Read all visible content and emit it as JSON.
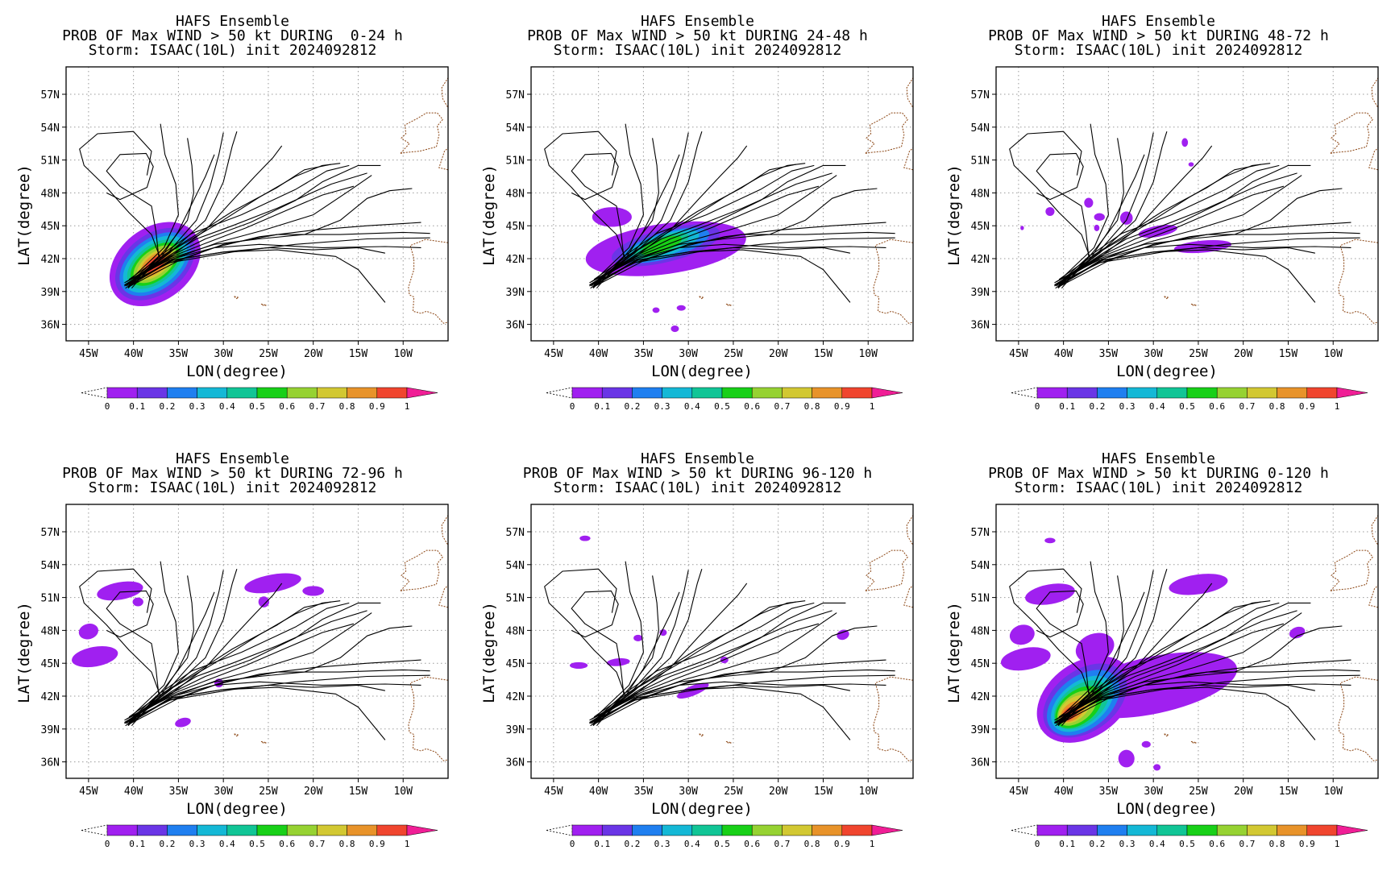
{
  "panels": [
    {
      "title1": "HAFS Ensemble",
      "title2": "PROB OF Max WIND > 50 kt DURING  0-24 h",
      "title3": "Storm: ISAAC(10L) init 2024092812"
    },
    {
      "title1": "HAFS Ensemble",
      "title2": "PROB OF Max WIND > 50 kt DURING 24-48 h",
      "title3": "Storm: ISAAC(10L) init 2024092812"
    },
    {
      "title1": "HAFS Ensemble",
      "title2": "PROB OF Max WIND > 50 kt DURING 48-72 h",
      "title3": "Storm: ISAAC(10L) init 2024092812"
    },
    {
      "title1": "HAFS Ensemble",
      "title2": "PROB OF Max WIND > 50 kt DURING 72-96 h",
      "title3": "Storm: ISAAC(10L) init 2024092812"
    },
    {
      "title1": "HAFS Ensemble",
      "title2": "PROB OF Max WIND > 50 kt DURING 96-120 h",
      "title3": "Storm: ISAAC(10L) init 2024092812"
    },
    {
      "title1": "HAFS Ensemble",
      "title2": "PROB OF Max WIND > 50 kt DURING 0-120 h",
      "title3": "Storm: ISAAC(10L) init 2024092812"
    }
  ],
  "axes": {
    "xlabel": "LON(degree)",
    "ylabel": "LAT(degree)",
    "xticks": [
      "45W",
      "40W",
      "35W",
      "30W",
      "25W",
      "20W",
      "15W",
      "10W"
    ],
    "yticks": [
      "57N",
      "54N",
      "51N",
      "48N",
      "45N",
      "42N",
      "39N",
      "36N"
    ]
  },
  "colorbar": {
    "labels": [
      "0",
      "0.1",
      "0.2",
      "0.3",
      "0.4",
      "0.5",
      "0.6",
      "0.7",
      "0.8",
      "0.9",
      "1"
    ],
    "colors": [
      "#a020f0",
      "#6a35e6",
      "#1f7ff0",
      "#14b8d6",
      "#11c596",
      "#18d018",
      "#96d232",
      "#d2c832",
      "#e8932a",
      "#f0452e"
    ],
    "over_color": "#f01e96"
  },
  "chart_data": {
    "type": "heatmap",
    "xlabel": "LON(degree)",
    "ylabel": "LAT(degree)",
    "xlim": [
      -47.5,
      -5
    ],
    "ylim": [
      34.5,
      59.5
    ],
    "colorbar_range": [
      0,
      1
    ]
  }
}
